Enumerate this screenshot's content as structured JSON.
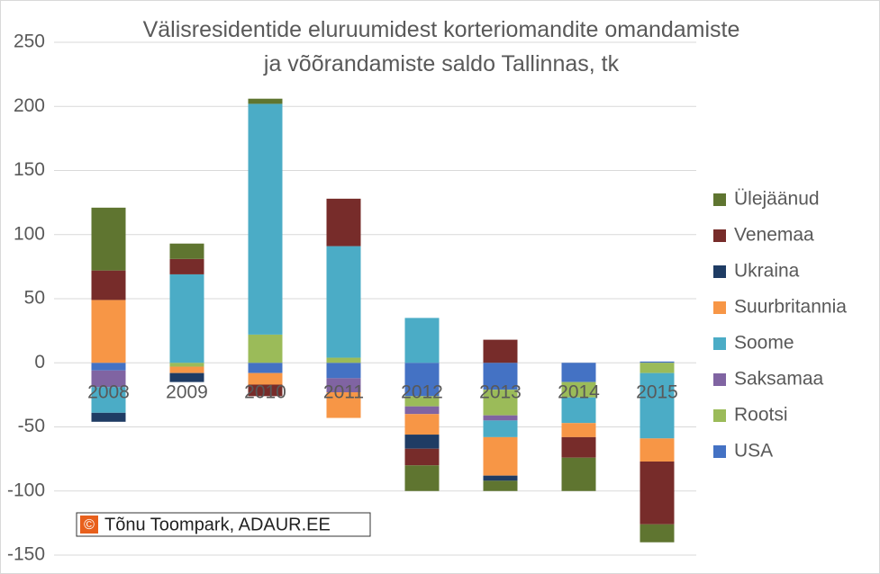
{
  "chart_data": {
    "type": "stacked_bar",
    "title": "Välisresidentide eluruumidest korteriomandite omandamiste ja võõrandamiste saldo Tallinnas, tk",
    "credit_symbol": "©",
    "credit": "Tõnu Toompark, ADAUR.EE",
    "categories": [
      "2008",
      "2009",
      "2010",
      "2011",
      "2012",
      "2013",
      "2014",
      "2015"
    ],
    "ylim": [
      -150,
      250
    ],
    "yticks": [
      -150,
      -100,
      -50,
      0,
      50,
      100,
      150,
      200,
      250
    ],
    "grid": true,
    "series": [
      {
        "name": "USA",
        "color": "#4472c4",
        "values": [
          -6,
          0,
          -8,
          -12,
          -26,
          -21,
          -15,
          1
        ]
      },
      {
        "name": "Rootsi",
        "color": "#9bbb59",
        "values": [
          0,
          -3,
          22,
          4,
          -8,
          -20,
          -12,
          -8
        ]
      },
      {
        "name": "Saksamaa",
        "color": "#8064a2",
        "values": [
          -13,
          0,
          0,
          -11,
          -6,
          -4,
          0,
          0
        ]
      },
      {
        "name": "Soome",
        "color": "#4bacc6",
        "values": [
          -20,
          69,
          180,
          87,
          35,
          -13,
          -20,
          -51
        ]
      },
      {
        "name": "Suurbritannia",
        "color": "#f79646",
        "values": [
          49,
          -5,
          -9,
          -20,
          -16,
          -30,
          -11,
          -18
        ]
      },
      {
        "name": "Ukraina",
        "color": "#1f3c64",
        "values": [
          -7,
          -7,
          0,
          0,
          -11,
          -4,
          0,
          0
        ]
      },
      {
        "name": "Venemaa",
        "color": "#772c2a",
        "values": [
          23,
          12,
          -9,
          37,
          -13,
          18,
          -16,
          -49
        ]
      },
      {
        "name": "Ülejäänud",
        "color": "#5f7530",
        "values": [
          49,
          12,
          4,
          0,
          -20,
          -8,
          -26,
          -14
        ]
      }
    ]
  }
}
